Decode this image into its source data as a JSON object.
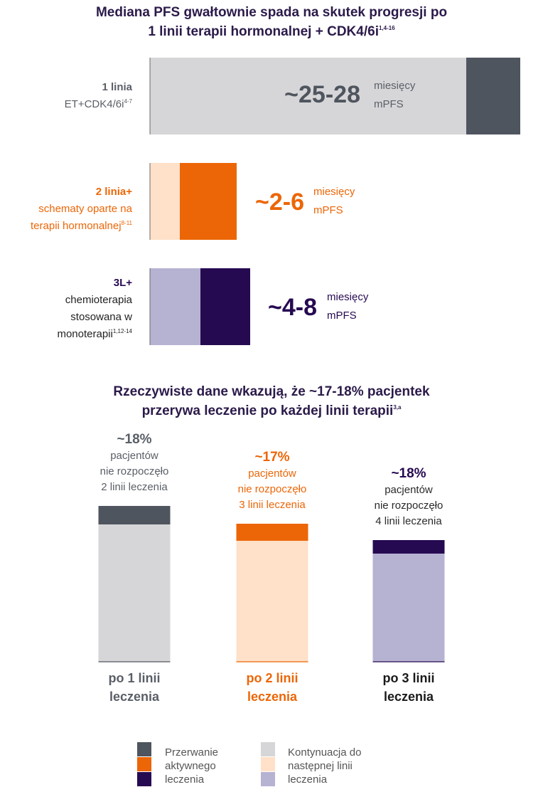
{
  "colors": {
    "gray_dark": "#4f555e",
    "gray_light": "#d6d6d8",
    "orange": "#ec6607",
    "orange_light": "#ffe0c8",
    "purple": "#260a51",
    "purple_light": "#b6b2d2",
    "title": "#2b1a4a",
    "text_gray": "#5a5f67"
  },
  "chart_data": [
    {
      "type": "bar",
      "title": "Mediana PFS gwałtownie spada na skutek progresji po 1 linii terapii hormonalnej + CDK4/6i",
      "title_line1": "Mediana PFS gwałtownie spada na skutek progresji po",
      "title_line2": "1 linii terapii hormonalnej + CDK4/6i",
      "title_sup": "1,4-16",
      "orientation": "horizontal",
      "rows": [
        {
          "label_bold": "1 linia",
          "label_lines": [
            "ET+CDK4/6i"
          ],
          "label_sup": "4-7",
          "value_text": "~25-28",
          "unit_line1": "miesięcy",
          "unit_line2": "mPFS",
          "mpfs_range_months": [
            25,
            28
          ],
          "color": "gray"
        },
        {
          "label_bold": "2 linia+",
          "label_lines": [
            "schematy oparte na",
            "terapii hormonalnej"
          ],
          "label_sup": "8-11",
          "value_text": "~2-6",
          "unit_line1": "miesięcy",
          "unit_line2": "mPFS",
          "mpfs_range_months": [
            2,
            6
          ],
          "color": "orange"
        },
        {
          "label_bold": "3L+",
          "label_lines": [
            "chemioterapia",
            "stosowana w",
            "monoterapii"
          ],
          "label_sup": "1,12-14",
          "value_text": "~4-8",
          "unit_line1": "miesięcy",
          "unit_line2": "mPFS",
          "mpfs_range_months": [
            4,
            8
          ],
          "color": "purple"
        }
      ]
    },
    {
      "type": "bar",
      "stacked": true,
      "title": "Rzeczywiste dane wkazują, że ~17-18% pacjentek przerywa leczenie po każdej linii terapii",
      "title_line1": "Rzeczywiste dane wkazują, że ~17-18% pacjentek",
      "title_line2": "przerywa leczenie po każdej linii terapii",
      "title_sup": "3,a",
      "ylim": [
        0,
        100
      ],
      "categories": [
        "po 1 linii leczenia",
        "po 2 linii leczenia",
        "po 3 linii leczenia"
      ],
      "category_lines": [
        [
          "po 1 linii",
          "leczenia"
        ],
        [
          "po 2 linii",
          "leczenia"
        ],
        [
          "po 3 linii",
          "leczenia"
        ]
      ],
      "series": [
        {
          "name": "Kontynuacja do następnej linii leczenia",
          "values": [
            82,
            83,
            82
          ]
        },
        {
          "name": "Przerwanie aktywnego leczenia",
          "values": [
            18,
            17,
            18
          ]
        }
      ],
      "bar_colors": [
        "gray",
        "orange",
        "purple"
      ],
      "annotations": [
        {
          "pct": "~18%",
          "lines": [
            "pacjentów",
            "nie rozpoczęło",
            "2 linii leczenia"
          ]
        },
        {
          "pct": "~17%",
          "lines": [
            "pacjentów",
            "nie rozpoczęło",
            "3 linii leczenia"
          ]
        },
        {
          "pct": "~18%",
          "lines": [
            "pacjentów",
            "nie rozpoczęło",
            "4 linii leczenia"
          ]
        }
      ]
    }
  ],
  "legend": {
    "left_label": [
      "Przerwanie",
      "aktywnego",
      "leczenia"
    ],
    "right_label": [
      "Kontynuacja do",
      "następnej linii",
      "leczenia"
    ]
  }
}
